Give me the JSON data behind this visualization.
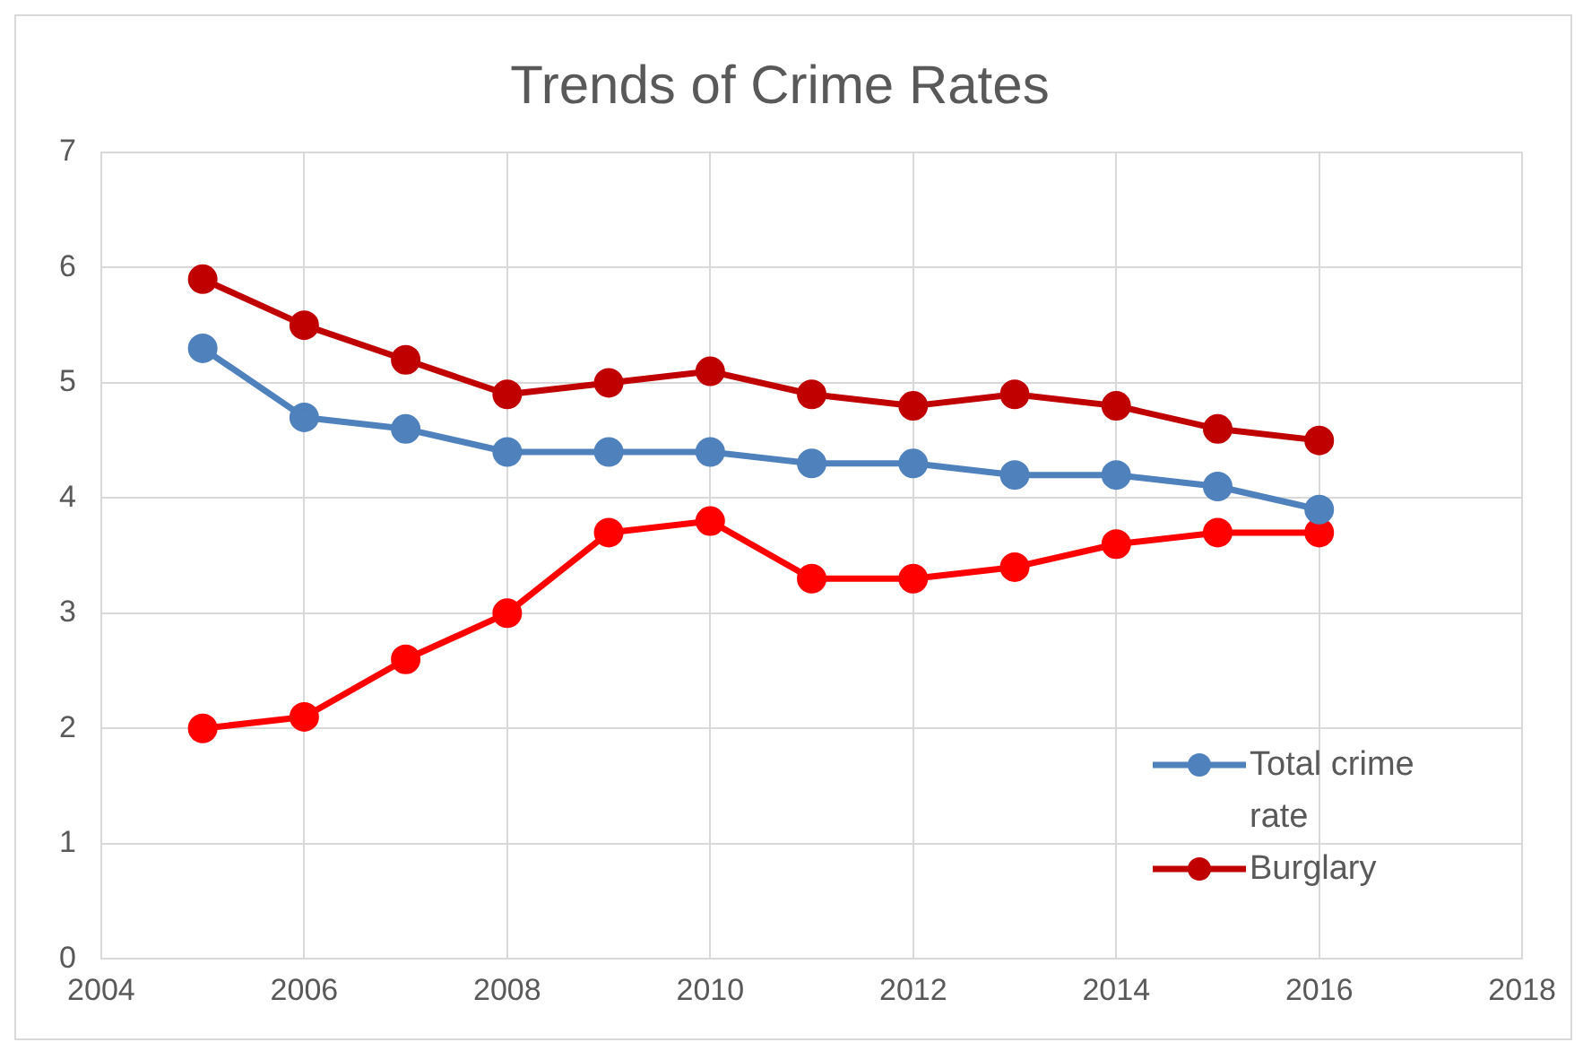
{
  "chart_data": {
    "type": "line",
    "title": "Trends of Crime Rates",
    "x": [
      2005,
      2006,
      2007,
      2008,
      2009,
      2010,
      2011,
      2012,
      2013,
      2014,
      2015,
      2016
    ],
    "series": [
      {
        "name": "Total crime rate",
        "color": "#4f81bd",
        "values": [
          5.3,
          4.7,
          4.6,
          4.4,
          4.4,
          4.4,
          4.3,
          4.3,
          4.2,
          4.2,
          4.1,
          3.9
        ]
      },
      {
        "name": "Burglary",
        "color": "#c00000",
        "values": [
          5.9,
          5.5,
          5.2,
          4.9,
          5.0,
          5.1,
          4.9,
          4.8,
          4.9,
          4.8,
          4.6,
          4.5
        ]
      },
      {
        "color": "#ff0000",
        "values": [
          2.0,
          2.1,
          2.6,
          3.0,
          3.7,
          3.8,
          3.3,
          3.3,
          3.4,
          3.6,
          3.7,
          3.7
        ]
      }
    ],
    "xlim": [
      2004,
      2018
    ],
    "xticks": [
      2004,
      2006,
      2008,
      2010,
      2012,
      2014,
      2016,
      2018
    ],
    "ylim": [
      0,
      7
    ],
    "yticks": [
      0,
      1,
      2,
      3,
      4,
      5,
      6,
      7
    ],
    "grid": true,
    "legend": "bottom right",
    "marker": "circle",
    "line_style": "solid"
  }
}
